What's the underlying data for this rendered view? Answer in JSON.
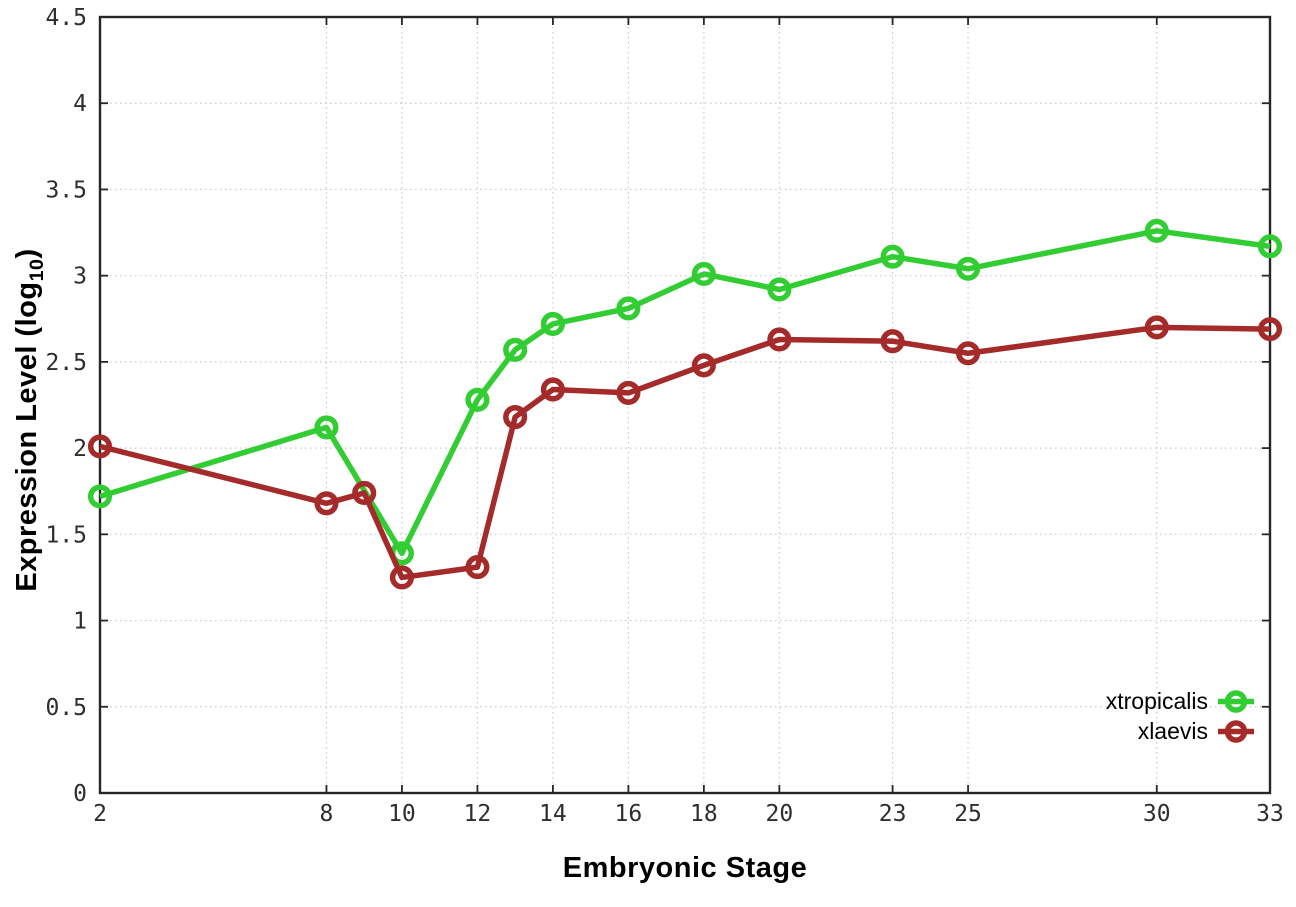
{
  "chart_data": {
    "type": "line",
    "title": "",
    "xlabel": "Embryonic Stage",
    "ylabel": "Expression Level (log10)",
    "ylabel_parts": {
      "main": "Expression Level (log",
      "sub": "10",
      "close": ")"
    },
    "xlim": [
      2,
      33
    ],
    "ylim": [
      0,
      4.5
    ],
    "grid": true,
    "legend_position": "bottom-right-inside",
    "xticks": {
      "values": [
        2,
        8,
        10,
        12,
        14,
        16,
        18,
        20,
        23,
        25,
        30,
        33
      ],
      "labels": [
        "2",
        "8",
        "10",
        "12",
        "14",
        "16",
        "18",
        "20",
        "23",
        "25",
        "30",
        "33"
      ]
    },
    "yticks": {
      "values": [
        0,
        0.5,
        1,
        1.5,
        2,
        2.5,
        3,
        3.5,
        4,
        4.5
      ],
      "labels": [
        "0",
        "0.5",
        "1",
        "1.5",
        "2",
        "2.5",
        "3",
        "3.5",
        "4",
        "4.5"
      ]
    },
    "series": [
      {
        "name": "xtropicalis",
        "color": "#32CD32",
        "marker": "open-circle",
        "points": [
          [
            2,
            1.72
          ],
          [
            8,
            2.12
          ],
          [
            10,
            1.39
          ],
          [
            12,
            2.28
          ],
          [
            13,
            2.57
          ],
          [
            14,
            2.72
          ],
          [
            16,
            2.81
          ],
          [
            18,
            3.01
          ],
          [
            20,
            2.92
          ],
          [
            23,
            3.11
          ],
          [
            25,
            3.04
          ],
          [
            30,
            3.26
          ],
          [
            33,
            3.17
          ]
        ]
      },
      {
        "name": "xlaevis",
        "color": "#A52A2A",
        "marker": "open-circle",
        "points": [
          [
            2,
            2.01
          ],
          [
            8,
            1.68
          ],
          [
            9,
            1.74
          ],
          [
            10,
            1.25
          ],
          [
            12,
            1.31
          ],
          [
            13,
            2.18
          ],
          [
            14,
            2.34
          ],
          [
            16,
            2.32
          ],
          [
            18,
            2.48
          ],
          [
            20,
            2.63
          ],
          [
            23,
            2.62
          ],
          [
            25,
            2.55
          ],
          [
            30,
            2.7
          ],
          [
            33,
            2.69
          ]
        ]
      }
    ],
    "colors": {
      "axis": "#262626",
      "grid": "#c9c9c9",
      "background": "#ffffff"
    }
  }
}
